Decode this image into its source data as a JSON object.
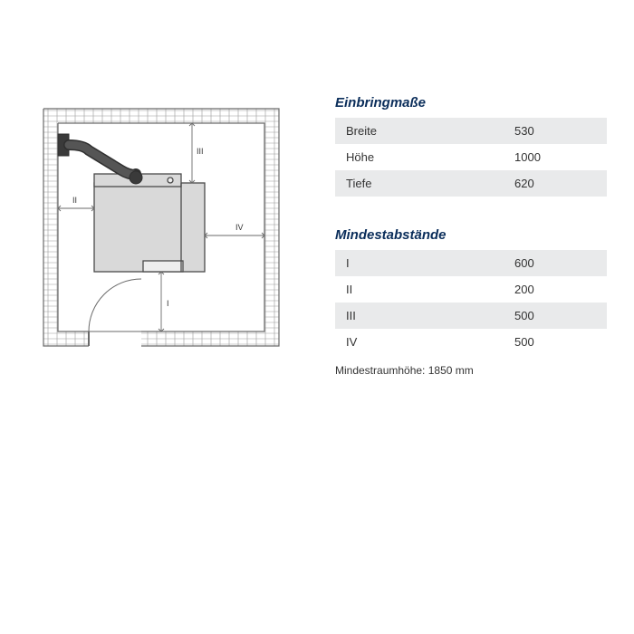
{
  "diagram": {
    "labels": {
      "I": "I",
      "II": "II",
      "III": "III",
      "IV": "IV"
    },
    "stroke": "#5a5a5a",
    "wall_fill": "#ffffff",
    "brick_stroke": "#7a7a7a",
    "appliance_fill": "#d9d9d9",
    "appliance_stroke": "#4a4a4a",
    "pipe_fill": "#3a3a3a",
    "dim_stroke": "#6a6a6a",
    "label_color": "#333333",
    "label_fontsize": 9
  },
  "tables": {
    "title_color": "#0a2d5a",
    "title_fontsize": 15,
    "row_odd_bg": "#e9eaeb",
    "row_even_bg": "#ffffff",
    "text_color": "#333333",
    "dimensions": {
      "title": "Einbringmaße",
      "rows": [
        {
          "label": "Breite",
          "value": "530"
        },
        {
          "label": "Höhe",
          "value": "1000"
        },
        {
          "label": "Tiefe",
          "value": "620"
        }
      ]
    },
    "clearances": {
      "title": "Mindestabstände",
      "rows": [
        {
          "label": "I",
          "value": "600"
        },
        {
          "label": "II",
          "value": "200"
        },
        {
          "label": "III",
          "value": "500"
        },
        {
          "label": "IV",
          "value": "500"
        }
      ]
    },
    "footnote": "Mindestraumhöhe: 1850 mm"
  }
}
